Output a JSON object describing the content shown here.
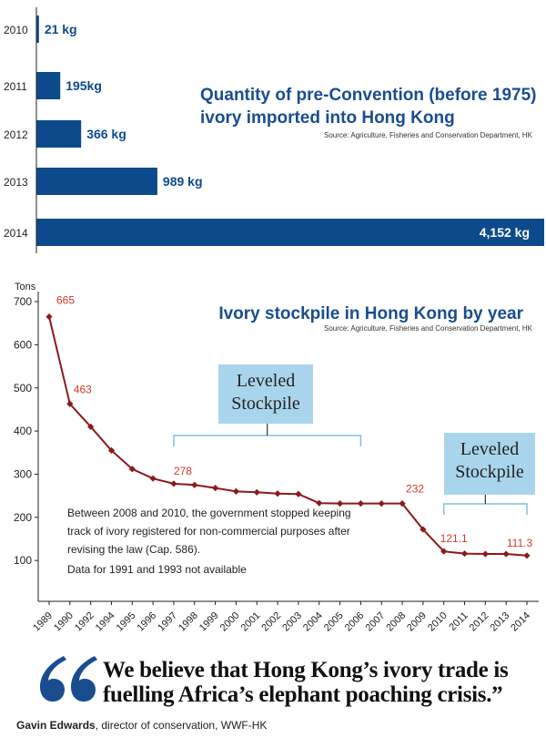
{
  "colors": {
    "bar": "#0d4a8c",
    "title": "#1a4d8f",
    "line": "#8b1a1a",
    "label_red": "#d33a2a",
    "callout_fill": "#a9d5ec",
    "bracket": "#7ec1e0"
  },
  "chart_data": [
    {
      "type": "bar",
      "orientation": "horizontal",
      "title_lines": [
        "Quantity of pre-Convention (before 1975)",
        "ivory imported into Hong Kong"
      ],
      "source": "Source: Agriculture, Fisheries and Conservation Department, HK",
      "categories": [
        "2010",
        "2011",
        "2012",
        "2013",
        "2014"
      ],
      "values": [
        21,
        195,
        366,
        989,
        4152
      ],
      "value_labels": [
        "21 kg",
        "195kg",
        "366 kg",
        "989 kg",
        "4,152 kg"
      ],
      "unit": "kg"
    },
    {
      "type": "line",
      "title": "Ivory stockpile in Hong Kong by year",
      "source": "Source: Agriculture, Fisheries and Conservation Department, HK",
      "ylabel": "Tons",
      "ylim": [
        0,
        700
      ],
      "yticks": [
        100,
        200,
        300,
        400,
        500,
        600,
        700
      ],
      "x": [
        "1989",
        "1990",
        "1992",
        "1994",
        "1995",
        "1996",
        "1997",
        "1998",
        "1999",
        "2000",
        "2001",
        "2002",
        "2003",
        "2004",
        "2005",
        "2006",
        "2007",
        "2008",
        "2009",
        "2010",
        "2011",
        "2012",
        "2013",
        "2014"
      ],
      "y": [
        665,
        463,
        410,
        355,
        312,
        290,
        278,
        275,
        268,
        260,
        258,
        255,
        254,
        233,
        232,
        232,
        232,
        232,
        172,
        121.1,
        116,
        115,
        115,
        111.3
      ],
      "point_labels": [
        {
          "x": "1989",
          "text": "665"
        },
        {
          "x": "1990",
          "text": "463"
        },
        {
          "x": "1997",
          "text": "278"
        },
        {
          "x": "2008",
          "text": "232"
        },
        {
          "x": "2010",
          "text": "121.1"
        },
        {
          "x": "2014",
          "text": "111.3"
        }
      ],
      "callouts": [
        {
          "lines": [
            "Leveled",
            "Stockpile"
          ],
          "from": "1997",
          "to": "2006"
        },
        {
          "lines": [
            "Leveled",
            "Stockpile"
          ],
          "from": "2010",
          "to": "2014"
        }
      ],
      "notes": [
        "Between 2008 and 2010, the government stopped keeping",
        "track of ivory registered for non-commercial purposes after",
        "revising the law (Cap. 586).",
        "Data for 1991 and 1993 not available"
      ]
    }
  ],
  "quote": {
    "text": "We believe that Hong Kong’s ivory trade is fuelling Africa’s elephant poaching crisis.”",
    "author": "Gavin Edwards",
    "role": ", director of conservation, WWF-HK"
  }
}
